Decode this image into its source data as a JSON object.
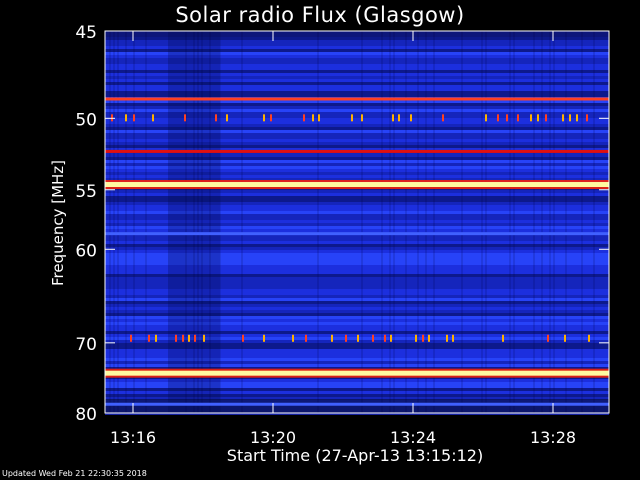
{
  "chart_data": {
    "type": "heatmap",
    "title": "Solar radio Flux (Glasgow)",
    "xlabel": "Start Time (27-Apr-13 13:15:12)",
    "ylabel": "Frequency [MHz]",
    "x_ticks": [
      "13:16",
      "13:20",
      "13:24",
      "13:28"
    ],
    "x_tick_minutes": [
      0.8,
      4.8,
      8.8,
      12.8
    ],
    "xlim_minutes": [
      0.0,
      14.4
    ],
    "y_ticks": [
      45,
      50,
      55,
      60,
      70,
      80
    ],
    "ylim": [
      45,
      80
    ],
    "y_scale": "reciprocal",
    "colormap": [
      "#000060",
      "#1020c0",
      "#2040ff",
      "#c00010",
      "#ff2020",
      "#ff8000",
      "#ffff40",
      "#ffffe0"
    ],
    "emission_lines": [
      {
        "freq": 48.8,
        "intensity": 0.85
      },
      {
        "freq": 52.2,
        "intensity": 0.65
      },
      {
        "freq": 54.6,
        "intensity": 1.0
      },
      {
        "freq": 58.6,
        "intensity": 0.3
      },
      {
        "freq": 74.0,
        "intensity": 1.0
      },
      {
        "freq": 78.6,
        "intensity": 0.3
      }
    ],
    "spike_bands": [
      {
        "freq": 50.0,
        "intensity": 0.8
      },
      {
        "freq": 69.5,
        "intensity": 0.6
      }
    ]
  },
  "footer": "Updated Wed Feb 21 22:30:35 2018"
}
